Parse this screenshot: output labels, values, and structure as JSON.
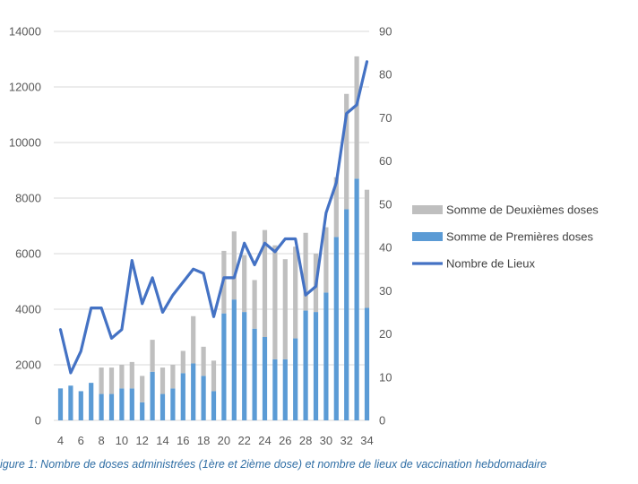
{
  "caption": "igure 1: Nombre de doses administrées (1ère et 2ième dose) et nombre de lieux de vaccination hebdomadaire",
  "chart_data": {
    "type": "bar",
    "stacked": true,
    "x": [
      4,
      5,
      6,
      7,
      8,
      9,
      10,
      11,
      12,
      13,
      14,
      15,
      16,
      17,
      18,
      19,
      20,
      21,
      22,
      23,
      24,
      25,
      26,
      27,
      28,
      29,
      30,
      31,
      32,
      33,
      34
    ],
    "x_tick_labels": [
      "4",
      "6",
      "8",
      "10",
      "12",
      "14",
      "16",
      "18",
      "20",
      "22",
      "24",
      "26",
      "28",
      "30",
      "32",
      "34"
    ],
    "y_left": {
      "ylim": [
        0,
        14000
      ],
      "ticks": [
        0,
        2000,
        4000,
        6000,
        8000,
        10000,
        12000,
        14000
      ]
    },
    "y_right": {
      "ylim": [
        0,
        90
      ],
      "ticks": [
        0,
        10,
        20,
        30,
        40,
        50,
        60,
        70,
        80,
        90
      ]
    },
    "grid": "horizontal",
    "legend_position": "right",
    "series": [
      {
        "name": "Somme de Deuxièmes doses",
        "kind": "bar",
        "axis": "left",
        "color": "#bfbfbf",
        "values": [
          0,
          0,
          0,
          0,
          950,
          950,
          850,
          950,
          950,
          1150,
          950,
          850,
          800,
          1700,
          1050,
          1100,
          2250,
          2450,
          2050,
          1750,
          3850,
          4100,
          3600,
          3300,
          2800,
          2100,
          2350,
          2150,
          4150,
          4400,
          4250
        ]
      },
      {
        "name": "Somme de Premières doses",
        "kind": "bar",
        "axis": "left",
        "color": "#5b9bd5",
        "values": [
          1150,
          1250,
          1050,
          1350,
          950,
          950,
          1150,
          1150,
          650,
          1750,
          950,
          1150,
          1700,
          2050,
          1600,
          1050,
          3850,
          4350,
          3900,
          3300,
          3000,
          2200,
          2200,
          2950,
          3950,
          3900,
          4600,
          6600,
          7600,
          8700,
          4050
        ]
      },
      {
        "name": "Nombre de Lieux",
        "kind": "line",
        "axis": "right",
        "color": "#4472c4",
        "values": [
          21,
          11,
          16,
          26,
          26,
          19,
          21,
          37,
          27,
          33,
          25,
          29,
          32,
          35,
          34,
          24,
          33,
          33,
          41,
          36,
          41,
          39,
          42,
          42,
          29,
          31,
          48,
          55,
          71,
          73,
          83
        ]
      }
    ]
  }
}
